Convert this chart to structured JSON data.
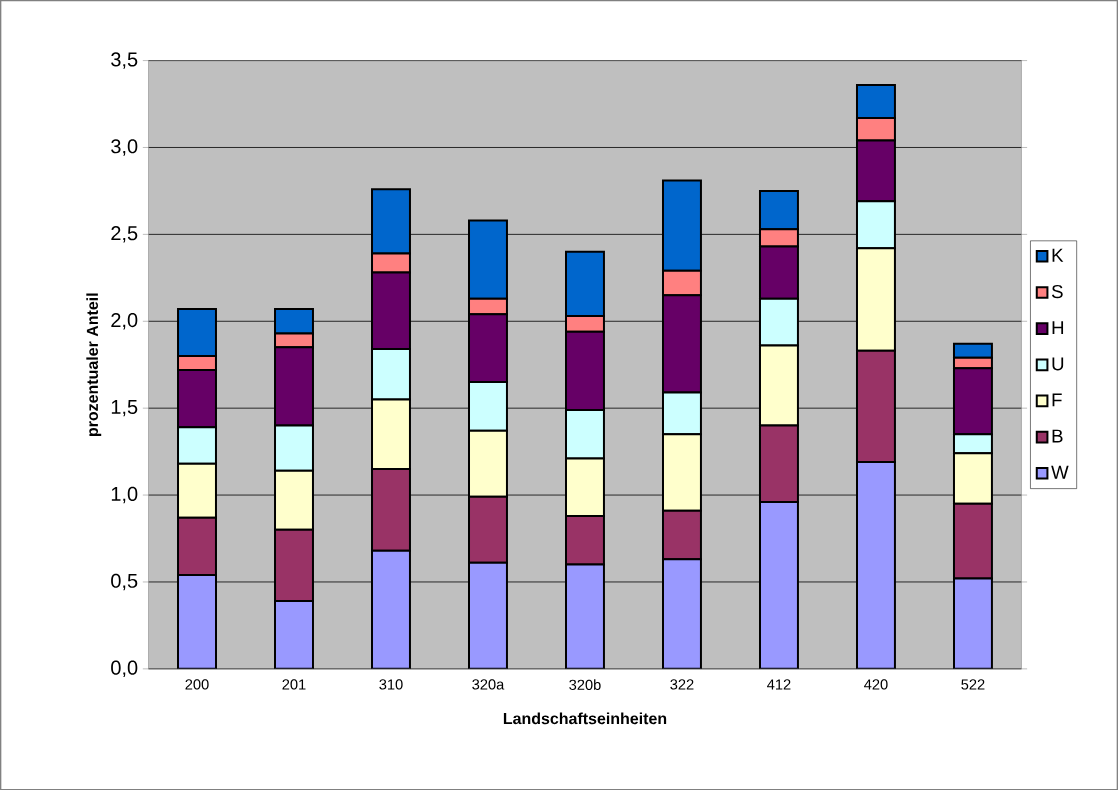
{
  "chart_data": {
    "type": "bar",
    "stacked": true,
    "xlabel": "Landschaftseinheiten",
    "ylabel": "prozentualer Anteil",
    "categories": [
      "200",
      "201",
      "310",
      "320a",
      "320b",
      "322",
      "412",
      "420",
      "522"
    ],
    "series": [
      {
        "name": "W",
        "color": "#9999ff",
        "values": [
          0.54,
          0.39,
          0.68,
          0.61,
          0.6,
          0.63,
          0.96,
          1.19,
          0.52
        ]
      },
      {
        "name": "B",
        "color": "#993366",
        "values": [
          0.33,
          0.41,
          0.47,
          0.38,
          0.28,
          0.28,
          0.44,
          0.64,
          0.43
        ]
      },
      {
        "name": "F",
        "color": "#ffffcc",
        "values": [
          0.31,
          0.34,
          0.4,
          0.38,
          0.33,
          0.44,
          0.46,
          0.59,
          0.29
        ]
      },
      {
        "name": "U",
        "color": "#ccffff",
        "values": [
          0.21,
          0.26,
          0.29,
          0.28,
          0.28,
          0.24,
          0.27,
          0.27,
          0.11
        ]
      },
      {
        "name": "H",
        "color": "#660066",
        "values": [
          0.33,
          0.45,
          0.44,
          0.39,
          0.45,
          0.56,
          0.3,
          0.35,
          0.38
        ]
      },
      {
        "name": "S",
        "color": "#ff8080",
        "values": [
          0.08,
          0.08,
          0.11,
          0.09,
          0.09,
          0.14,
          0.1,
          0.13,
          0.06
        ]
      },
      {
        "name": "K",
        "color": "#0066cc",
        "values": [
          0.27,
          0.14,
          0.37,
          0.45,
          0.37,
          0.52,
          0.22,
          0.19,
          0.08
        ]
      }
    ],
    "ylim": [
      0,
      3.5
    ],
    "yticks": [
      {
        "value": 0,
        "label": "0,0"
      },
      {
        "value": 0.5,
        "label": "0,5"
      },
      {
        "value": 1,
        "label": "1,0"
      },
      {
        "value": 1.5,
        "label": "1,5"
      },
      {
        "value": 2,
        "label": "2,0"
      },
      {
        "value": 2.5,
        "label": "2,5"
      },
      {
        "value": 3,
        "label": "3,0"
      },
      {
        "value": 3.5,
        "label": "3,5"
      }
    ],
    "grid": "y",
    "legend": "right"
  }
}
